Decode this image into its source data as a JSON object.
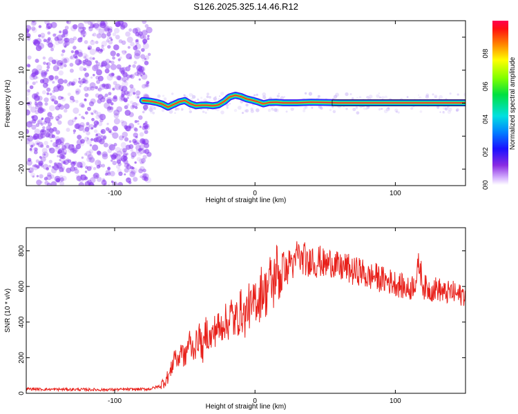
{
  "title": "S126.2025.325.14.46.R12",
  "colors": {
    "snr_line": "#e8201a",
    "ridge_core": "#e4163c",
    "scatter": "#8a3cf0",
    "spectrogram_bg": "#ffffff"
  },
  "chart_data": [
    {
      "type": "heatmap",
      "name": "spectrogram",
      "xlabel": "Height of straight line (km)",
      "ylabel": "Frequency (Hz)",
      "xlim": [
        -163,
        150
      ],
      "ylim": [
        -25,
        25
      ],
      "xticks": [
        -100,
        0,
        100
      ],
      "yticks": [
        -20,
        -10,
        0,
        10,
        20
      ],
      "xtick_labels": [
        "-100",
        "0",
        "100"
      ],
      "ytick_labels": [
        "-20",
        "-10",
        "0",
        "10",
        "20"
      ],
      "noise_region_x": [
        -163,
        -78
      ],
      "ridge": {
        "x": [
          -80,
          -75,
          -70,
          -66,
          -62,
          -58,
          -54,
          -50,
          -46,
          -42,
          -38,
          -34,
          -30,
          -26,
          -22,
          -18,
          -14,
          -10,
          -6,
          -2,
          2,
          6,
          10,
          15,
          20,
          30,
          40,
          50,
          60,
          70,
          80,
          90,
          100,
          110,
          120,
          130,
          140,
          150
        ],
        "y": [
          0.8,
          0.6,
          0.2,
          -0.3,
          -1.2,
          -0.4,
          0.4,
          0.8,
          -0.2,
          -0.8,
          -0.6,
          -0.6,
          -0.8,
          -0.5,
          0.5,
          1.9,
          2.4,
          2.0,
          1.3,
          0.9,
          0.4,
          -0.2,
          0.2,
          0.3,
          0.1,
          0.1,
          0.3,
          0.2,
          0.1,
          0.1,
          0.1,
          0.1,
          0.1,
          0.1,
          0.1,
          0.1,
          0.1,
          0.1
        ]
      },
      "colorbar": {
        "label": "Normalized spectral amplitude",
        "range": [
          0.0,
          1.0
        ],
        "ticks": [
          0.0,
          0.2,
          0.4,
          0.6,
          0.8
        ],
        "tick_labels": [
          "0.0",
          "0.2",
          "0.4",
          "0.6",
          "0.8"
        ]
      }
    },
    {
      "type": "line",
      "name": "snr",
      "xlabel": "Height of straight line (km)",
      "ylabel": "SNR (10 * v/v)",
      "xlim": [
        -163,
        150
      ],
      "ylim": [
        0,
        930
      ],
      "xticks": [
        -100,
        0,
        100
      ],
      "yticks": [
        0,
        200,
        400,
        600,
        800
      ],
      "xtick_labels": [
        "-100",
        "0",
        "100"
      ],
      "ytick_labels": [
        "0",
        "200",
        "400",
        "600",
        "800"
      ],
      "series": [
        {
          "name": "SNR",
          "x": [
            -163,
            -150,
            -130,
            -110,
            -90,
            -75,
            -68,
            -64,
            -60,
            -57,
            -55,
            -53,
            -50,
            -47,
            -45,
            -42,
            -40,
            -37,
            -35,
            -32,
            -30,
            -27,
            -25,
            -22,
            -20,
            -17,
            -15,
            -12,
            -10,
            -7,
            -5,
            -2,
            0,
            3,
            5,
            8,
            10,
            13,
            15,
            18,
            20,
            23,
            25,
            28,
            30,
            33,
            35,
            38,
            40,
            43,
            45,
            50,
            55,
            60,
            65,
            70,
            75,
            80,
            85,
            90,
            95,
            100,
            105,
            110,
            115,
            117,
            120,
            125,
            130,
            135,
            140,
            145,
            150
          ],
          "values": [
            25,
            22,
            22,
            20,
            22,
            24,
            40,
            70,
            120,
            230,
            160,
            260,
            190,
            300,
            250,
            270,
            330,
            230,
            360,
            300,
            330,
            380,
            350,
            420,
            380,
            450,
            400,
            430,
            470,
            420,
            500,
            460,
            540,
            520,
            600,
            560,
            640,
            600,
            700,
            650,
            720,
            680,
            760,
            700,
            800,
            740,
            770,
            700,
            780,
            720,
            750,
            720,
            740,
            700,
            710,
            680,
            690,
            650,
            660,
            640,
            630,
            620,
            600,
            580,
            640,
            730,
            600,
            580,
            590,
            560,
            570,
            550,
            560
          ]
        }
      ]
    }
  ]
}
